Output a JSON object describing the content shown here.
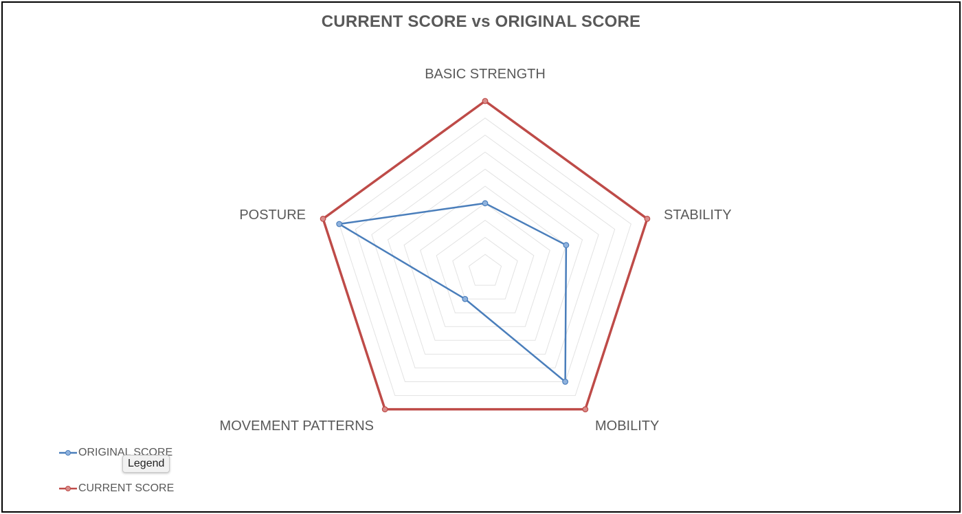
{
  "chart_data": {
    "type": "radar",
    "title": "CURRENT SCORE vs ORIGINAL SCORE",
    "categories": [
      "BASIC STRENGTH",
      "STABILITY",
      "MOBILITY",
      "MOVEMENT PATTERNS",
      "POSTURE"
    ],
    "series": [
      {
        "name": "ORIGINAL SCORE",
        "values": [
          4,
          5,
          8,
          2,
          9
        ],
        "color": "#4a7ebb"
      },
      {
        "name": "CURRENT SCORE",
        "values": [
          10,
          10,
          10,
          10,
          10
        ],
        "color": "#be4b48"
      }
    ],
    "rlim": [
      0,
      10
    ],
    "gridlines": 10,
    "grid": true,
    "legend_position": "bottom-left"
  },
  "legend": {
    "tooltip": "Legend"
  }
}
